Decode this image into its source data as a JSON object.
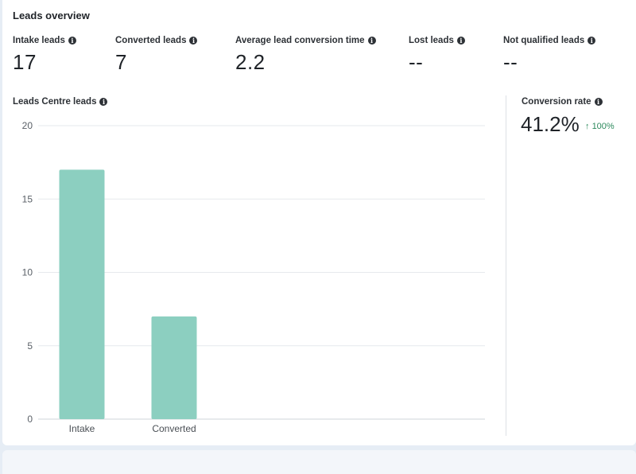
{
  "page_title": "Leads overview",
  "metrics": [
    {
      "label": "Intake leads",
      "value": "17"
    },
    {
      "label": "Converted leads",
      "value": "7"
    },
    {
      "label": "Average lead conversion time",
      "value": "2.2"
    },
    {
      "label": "Lost leads",
      "value": "--"
    },
    {
      "label": "Not qualified leads",
      "value": "--"
    }
  ],
  "conversion": {
    "label": "Conversion rate",
    "value": "41.2%",
    "trend_arrow": "↑",
    "trend": "100%",
    "trend_color": "#2e8a5e"
  },
  "chart_data": {
    "type": "bar",
    "title": "Leads Centre leads",
    "categories": [
      "Intake",
      "Converted"
    ],
    "values": [
      17,
      7
    ],
    "ylim": [
      0,
      20
    ],
    "yticks": [
      0,
      5,
      10,
      15,
      20
    ],
    "grid": true,
    "bar_color": "#8ccfc0",
    "xlabel": "",
    "ylabel": ""
  },
  "icons": {
    "info": "info-icon",
    "trend": "arrow-up-icon"
  }
}
